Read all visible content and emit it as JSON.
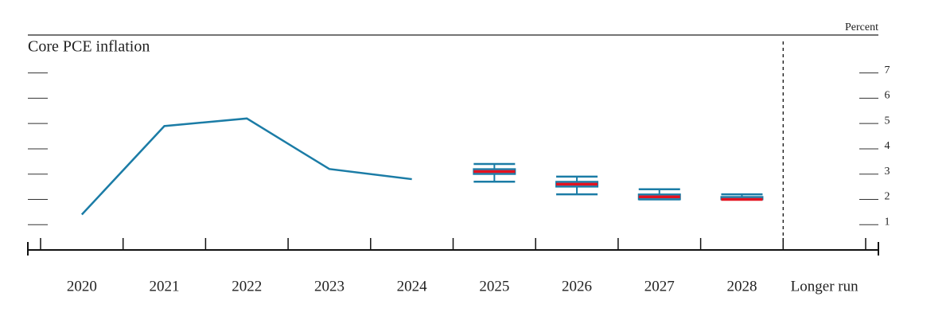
{
  "chart_data": {
    "type": "line",
    "title": "Core PCE inflation",
    "unit_label": "Percent",
    "categories": [
      "2020",
      "2021",
      "2022",
      "2023",
      "2024",
      "2025",
      "2026",
      "2027",
      "2028",
      "Longer run"
    ],
    "values": [
      1.4,
      4.9,
      5.2,
      3.2,
      2.8,
      null,
      null,
      null,
      null,
      null
    ],
    "color": "#1b7ca6",
    "projections": {
      "median": [
        null,
        null,
        null,
        null,
        null,
        3.1,
        2.6,
        2.1,
        2.0,
        null
      ],
      "median_color": "#e3121f",
      "central_tendency_low": [
        null,
        null,
        null,
        null,
        null,
        3.0,
        2.5,
        2.0,
        2.0,
        null
      ],
      "central_tendency_high": [
        null,
        null,
        null,
        null,
        null,
        3.2,
        2.7,
        2.2,
        2.1,
        null
      ],
      "range_low": [
        null,
        null,
        null,
        null,
        null,
        2.7,
        2.2,
        2.0,
        2.0,
        null
      ],
      "range_high": [
        null,
        null,
        null,
        null,
        null,
        3.4,
        2.9,
        2.4,
        2.2,
        null
      ]
    },
    "ylim": [
      0,
      8.5
    ],
    "yticks": [
      1,
      2,
      3,
      4,
      5,
      6,
      7
    ]
  }
}
